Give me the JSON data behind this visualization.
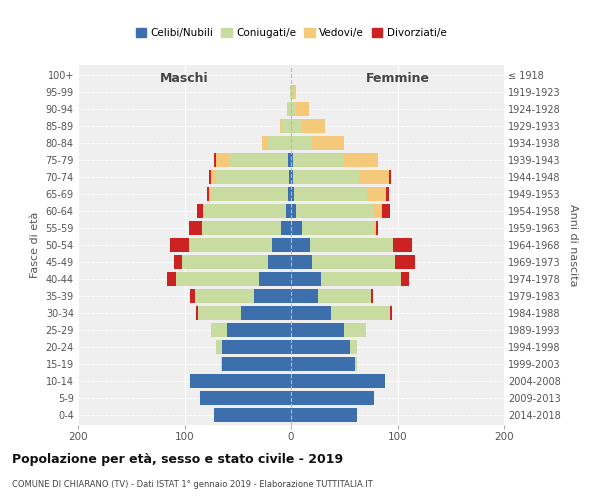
{
  "age_groups": [
    "0-4",
    "5-9",
    "10-14",
    "15-19",
    "20-24",
    "25-29",
    "30-34",
    "35-39",
    "40-44",
    "45-49",
    "50-54",
    "55-59",
    "60-64",
    "65-69",
    "70-74",
    "75-79",
    "80-84",
    "85-89",
    "90-94",
    "95-99",
    "100+"
  ],
  "birth_years": [
    "2014-2018",
    "2009-2013",
    "2004-2008",
    "1999-2003",
    "1994-1998",
    "1989-1993",
    "1984-1988",
    "1979-1983",
    "1974-1978",
    "1969-1973",
    "1964-1968",
    "1959-1963",
    "1954-1958",
    "1949-1953",
    "1944-1948",
    "1939-1943",
    "1934-1938",
    "1929-1933",
    "1924-1928",
    "1919-1923",
    "≤ 1918"
  ],
  "males": {
    "celibi": [
      72,
      85,
      95,
      65,
      65,
      60,
      47,
      35,
      30,
      22,
      18,
      9,
      5,
      3,
      2,
      3,
      0,
      0,
      0,
      0,
      0
    ],
    "coniugati": [
      0,
      0,
      0,
      1,
      5,
      15,
      40,
      55,
      78,
      80,
      78,
      75,
      78,
      72,
      68,
      55,
      22,
      8,
      4,
      1,
      0
    ],
    "vedovi": [
      0,
      0,
      0,
      0,
      0,
      0,
      0,
      0,
      0,
      0,
      0,
      0,
      0,
      2,
      5,
      12,
      5,
      2,
      0,
      0,
      0
    ],
    "divorziati": [
      0,
      0,
      0,
      0,
      0,
      0,
      2,
      5,
      8,
      8,
      18,
      12,
      5,
      2,
      2,
      2,
      0,
      0,
      0,
      0,
      0
    ]
  },
  "females": {
    "nubili": [
      62,
      78,
      88,
      60,
      55,
      50,
      38,
      25,
      28,
      20,
      18,
      10,
      5,
      3,
      2,
      2,
      0,
      0,
      0,
      0,
      0
    ],
    "coniugate": [
      0,
      0,
      0,
      2,
      7,
      20,
      55,
      50,
      75,
      78,
      78,
      68,
      72,
      68,
      62,
      48,
      20,
      10,
      5,
      2,
      0
    ],
    "vedove": [
      0,
      0,
      0,
      0,
      0,
      0,
      0,
      0,
      0,
      0,
      0,
      2,
      8,
      18,
      28,
      32,
      30,
      22,
      12,
      3,
      0
    ],
    "divorziate": [
      0,
      0,
      0,
      0,
      0,
      0,
      2,
      2,
      8,
      18,
      18,
      2,
      8,
      3,
      2,
      0,
      0,
      0,
      0,
      0,
      0
    ]
  },
  "colors": {
    "celibi": "#3d6fad",
    "coniugati": "#c8dba0",
    "vedovi": "#f5c97a",
    "divorziati": "#cc2222"
  },
  "title": "Popolazione per età, sesso e stato civile - 2019",
  "subtitle": "COMUNE DI CHIARANO (TV) - Dati ISTAT 1° gennaio 2019 - Elaborazione TUTTITALIA.IT",
  "xlabel_left": "Maschi",
  "xlabel_right": "Femmine",
  "ylabel_left": "Fasce di età",
  "ylabel_right": "Anni di nascita",
  "xlim": 200,
  "legend_labels": [
    "Celibi/Nubili",
    "Coniugati/e",
    "Vedovi/e",
    "Divorziati/e"
  ]
}
